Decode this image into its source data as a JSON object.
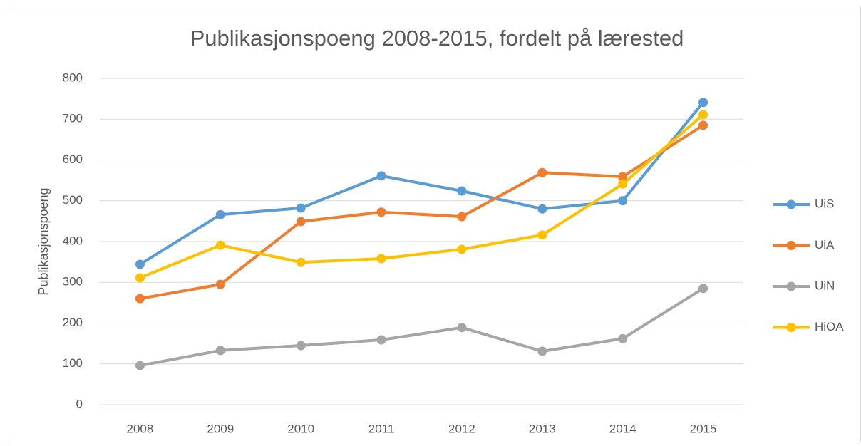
{
  "chart_data": {
    "type": "line",
    "title": "Publikasjonspoeng 2008-2015, fordelt på lærested",
    "y_label": "Publikasjonspoeng",
    "categories": [
      "2008",
      "2009",
      "2010",
      "2011",
      "2012",
      "2013",
      "2014",
      "2015"
    ],
    "series": [
      {
        "name": "UiS",
        "color": "#5b9bd5",
        "values": [
          344,
          466,
          482,
          561,
          524,
          480,
          500,
          741
        ]
      },
      {
        "name": "UiA",
        "color": "#ed7d31",
        "values": [
          260,
          295,
          449,
          472,
          461,
          569,
          559,
          685
        ]
      },
      {
        "name": "UiN",
        "color": "#a5a5a5",
        "values": [
          96,
          133,
          145,
          159,
          189,
          131,
          162,
          285
        ]
      },
      {
        "name": "HiOA",
        "color": "#ffc000",
        "values": [
          311,
          391,
          349,
          358,
          381,
          416,
          541,
          711
        ]
      }
    ],
    "ylim": [
      0,
      800
    ],
    "yticks": [
      0,
      100,
      200,
      300,
      400,
      500,
      600,
      700,
      800
    ],
    "grid": true,
    "legend": "right"
  }
}
